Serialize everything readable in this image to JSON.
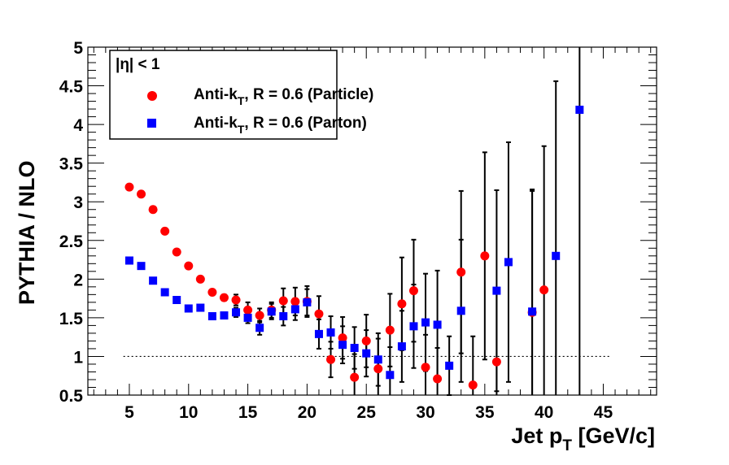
{
  "chart_data": {
    "type": "scatter",
    "title": "",
    "xlabel": "Jet p",
    "xlabel_sub": "T",
    "xlabel_unit": " [GeV/c]",
    "ylabel": "PYTHIA / NLO",
    "xlim": [
      1.5,
      49.5
    ],
    "ylim": [
      0.5,
      5
    ],
    "x_ticks": [
      5,
      10,
      15,
      20,
      25,
      30,
      35,
      40,
      45
    ],
    "y_ticks": [
      0.5,
      1,
      1.5,
      2,
      2.5,
      3,
      3.5,
      4,
      4.5,
      5
    ],
    "x_tick_labels": [
      "5",
      "10",
      "15",
      "20",
      "25",
      "30",
      "35",
      "40",
      "45"
    ],
    "y_tick_labels": [
      "0.5",
      "1",
      "1.5",
      "2",
      "2.5",
      "3",
      "3.5",
      "4",
      "4.5",
      "5"
    ],
    "reference_line": {
      "y": 1,
      "x_from": 4.5,
      "x_to": 45.5,
      "style": "dotted"
    },
    "legend": {
      "placement": "top-left",
      "header": "|η| < 1",
      "entries": [
        {
          "label_main": "Anti-k",
          "label_sub": "T",
          "label_rest": ", R = 0.6 (Particle)",
          "series": 0
        },
        {
          "label_main": "Anti-k",
          "label_sub": "T",
          "label_rest": ", R = 0.6 (Parton)",
          "series": 1
        }
      ]
    },
    "series": [
      {
        "marker": "circle",
        "color": "#ff0000",
        "points": [
          {
            "x": 5,
            "y": 3.19,
            "err": 0
          },
          {
            "x": 6,
            "y": 3.1,
            "err": 0
          },
          {
            "x": 7,
            "y": 2.9,
            "err": 0
          },
          {
            "x": 8,
            "y": 2.62,
            "err": 0
          },
          {
            "x": 9,
            "y": 2.35,
            "err": 0
          },
          {
            "x": 10,
            "y": 2.17,
            "err": 0
          },
          {
            "x": 11,
            "y": 2.0,
            "err": 0
          },
          {
            "x": 12,
            "y": 1.83,
            "err": 0
          },
          {
            "x": 13,
            "y": 1.76,
            "err": 0.04
          },
          {
            "x": 14,
            "y": 1.73,
            "err": 0.07
          },
          {
            "x": 15,
            "y": 1.6,
            "err": 0.1
          },
          {
            "x": 16,
            "y": 1.53,
            "err": 0.09
          },
          {
            "x": 17,
            "y": 1.6,
            "err": 0.1
          },
          {
            "x": 18,
            "y": 1.72,
            "err": 0.16
          },
          {
            "x": 19,
            "y": 1.71,
            "err": 0.18
          },
          {
            "x": 20,
            "y": 1.71,
            "err": 0.2
          },
          {
            "x": 21,
            "y": 1.55,
            "err": 0.23
          },
          {
            "x": 22,
            "y": 0.96,
            "err": 0.23
          },
          {
            "x": 23,
            "y": 1.24,
            "err": 0.27
          },
          {
            "x": 24,
            "y": 0.73,
            "err": 0.3
          },
          {
            "x": 25,
            "y": 1.2,
            "err": 0.34
          },
          {
            "x": 26,
            "y": 0.84,
            "err": 0.39
          },
          {
            "x": 27,
            "y": 1.34,
            "err": 0.47
          },
          {
            "x": 28,
            "y": 1.68,
            "err": 0.6
          },
          {
            "x": 29,
            "y": 1.85,
            "err": 0.66
          },
          {
            "x": 30,
            "y": 0.86,
            "err": 0.42
          },
          {
            "x": 31,
            "y": 0.71,
            "err": 0.4
          },
          {
            "x": 33,
            "y": 2.09,
            "err": 1.05
          },
          {
            "x": 34,
            "y": 0.63,
            "err": 0.63
          },
          {
            "x": 35,
            "y": 2.3,
            "err": 1.34
          },
          {
            "x": 36,
            "y": 0.93,
            "err": 0.93
          },
          {
            "x": 39,
            "y": 1.57,
            "err": 1.57
          },
          {
            "x": 40,
            "y": 1.86,
            "err": 1.86
          }
        ]
      },
      {
        "marker": "square",
        "color": "#0000ff",
        "points": [
          {
            "x": 5,
            "y": 2.24,
            "err": 0
          },
          {
            "x": 6,
            "y": 2.17,
            "err": 0
          },
          {
            "x": 7,
            "y": 1.98,
            "err": 0
          },
          {
            "x": 8,
            "y": 1.83,
            "err": 0
          },
          {
            "x": 9,
            "y": 1.73,
            "err": 0
          },
          {
            "x": 10,
            "y": 1.62,
            "err": 0
          },
          {
            "x": 11,
            "y": 1.63,
            "err": 0
          },
          {
            "x": 12,
            "y": 1.52,
            "err": 0
          },
          {
            "x": 13,
            "y": 1.53,
            "err": 0.04
          },
          {
            "x": 14,
            "y": 1.57,
            "err": 0.06
          },
          {
            "x": 15,
            "y": 1.5,
            "err": 0.07
          },
          {
            "x": 16,
            "y": 1.37,
            "err": 0.09
          },
          {
            "x": 17,
            "y": 1.58,
            "err": 0.1
          },
          {
            "x": 18,
            "y": 1.52,
            "err": 0.12
          },
          {
            "x": 19,
            "y": 1.61,
            "err": 0.14
          },
          {
            "x": 20,
            "y": 1.7,
            "err": 0.17
          },
          {
            "x": 21,
            "y": 1.29,
            "err": 0.19
          },
          {
            "x": 22,
            "y": 1.31,
            "err": 0.21
          },
          {
            "x": 23,
            "y": 1.15,
            "err": 0.24
          },
          {
            "x": 24,
            "y": 1.11,
            "err": 0.27
          },
          {
            "x": 25,
            "y": 1.04,
            "err": 0.3
          },
          {
            "x": 26,
            "y": 0.96,
            "err": 0.34
          },
          {
            "x": 27,
            "y": 0.76,
            "err": 0.36
          },
          {
            "x": 28,
            "y": 1.13,
            "err": 0.46
          },
          {
            "x": 29,
            "y": 1.39,
            "err": 0.54
          },
          {
            "x": 30,
            "y": 1.44,
            "err": 0.63
          },
          {
            "x": 31,
            "y": 1.41,
            "err": 0.7
          },
          {
            "x": 32,
            "y": 0.88,
            "err": 0.38
          },
          {
            "x": 33,
            "y": 1.59,
            "err": 0.92
          },
          {
            "x": 36,
            "y": 1.85,
            "err": 1.3
          },
          {
            "x": 37,
            "y": 2.22,
            "err": 1.55
          },
          {
            "x": 39,
            "y": 1.58,
            "err": 1.58
          },
          {
            "x": 41,
            "y": 2.3,
            "err": 2.26
          },
          {
            "x": 43,
            "y": 4.19,
            "err": 4.19
          }
        ]
      }
    ]
  }
}
